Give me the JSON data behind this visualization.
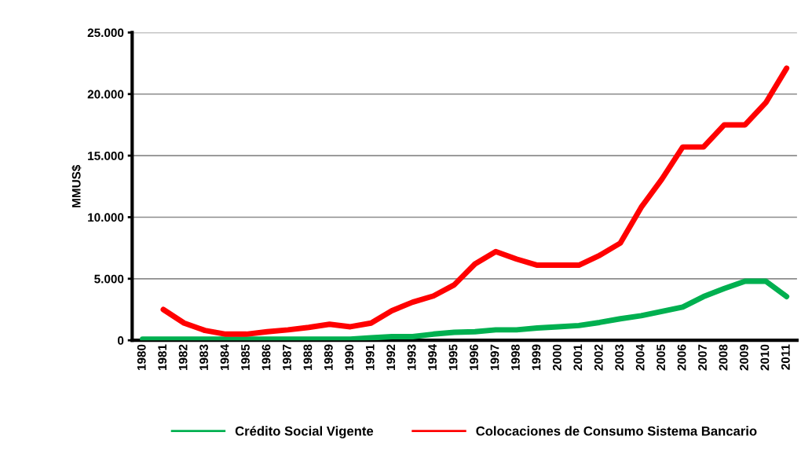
{
  "chart_data": {
    "type": "line",
    "ylabel": "MMUS$",
    "categories": [
      "1980",
      "1981",
      "1982",
      "1983",
      "1984",
      "1985",
      "1986",
      "1987",
      "1988",
      "1989",
      "1990",
      "1991",
      "1992",
      "1993",
      "1994",
      "1995",
      "1996",
      "1997",
      "1998",
      "1999",
      "2000",
      "2001",
      "2002",
      "2003",
      "2004",
      "2005",
      "2006",
      "2007",
      "2008",
      "2009",
      "2010",
      "2011"
    ],
    "series": [
      {
        "name": "Crédito Social Vigente",
        "color": "#00b050",
        "values": [
          100,
          100,
          100,
          100,
          100,
          100,
          100,
          100,
          100,
          100,
          100,
          200,
          300,
          300,
          500,
          650,
          700,
          850,
          850,
          1000,
          1100,
          1200,
          1450,
          1750,
          2000,
          2350,
          2700,
          3550,
          4200,
          4800,
          4800,
          3550
        ]
      },
      {
        "name": "Colocaciones de Consumo Sistema Bancario",
        "color": "#ff0000",
        "values": [
          null,
          2500,
          1400,
          800,
          500,
          500,
          700,
          850,
          1050,
          1300,
          1100,
          1400,
          2400,
          3100,
          3600,
          4500,
          6200,
          7200,
          6600,
          6100,
          6100,
          6100,
          6900,
          7900,
          10800,
          13100,
          15700,
          15700,
          17500,
          17500,
          19300,
          22100
        ]
      }
    ],
    "ylim": [
      0,
      25000
    ],
    "yticks": [
      {
        "value": 0,
        "label": "0"
      },
      {
        "value": 5000,
        "label": "5.000"
      },
      {
        "value": 10000,
        "label": "10.000"
      },
      {
        "value": 15000,
        "label": "15.000"
      },
      {
        "value": 20000,
        "label": "20.000"
      },
      {
        "value": 25000,
        "label": "25.000"
      }
    ],
    "grid": "y",
    "legend": "bottom",
    "marker": "none",
    "line_style": "solid"
  }
}
